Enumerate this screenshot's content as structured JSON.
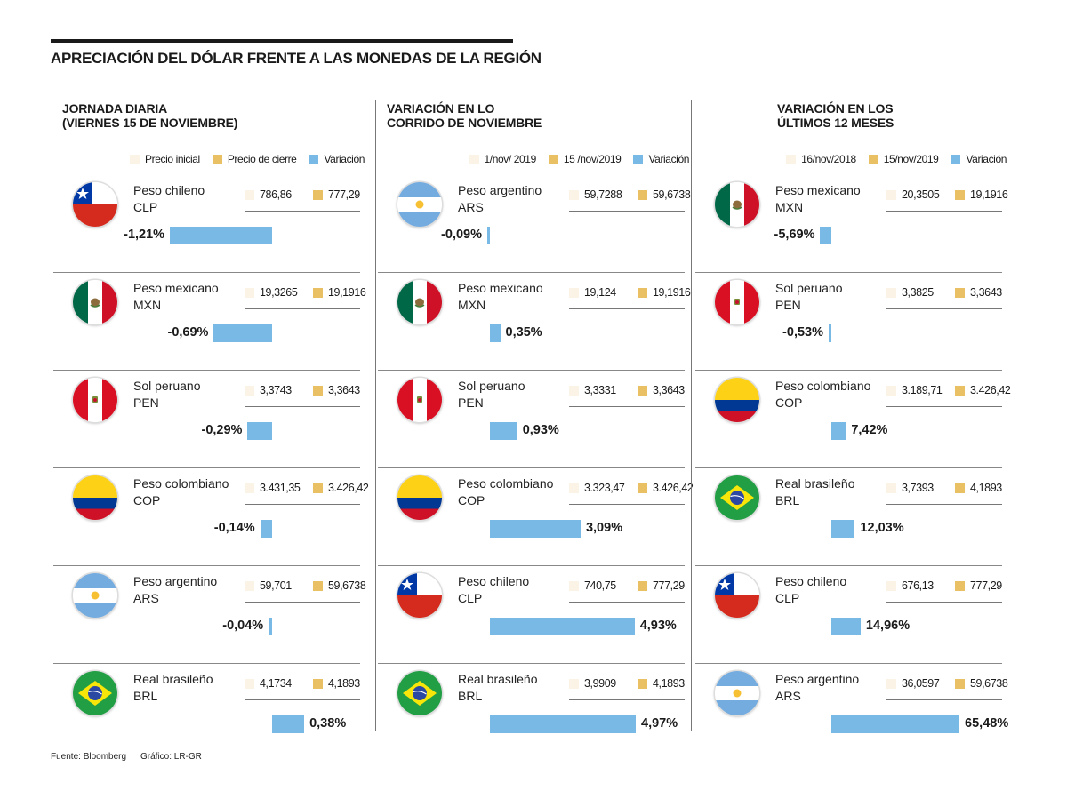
{
  "title": "APRECIACIÓN DEL DÓLAR FRENTE A LAS MONEDAS DE LA REGIÓN",
  "colors": {
    "initial": "#fbf3e6",
    "close": "#e9c064",
    "variation": "#78b9e5"
  },
  "footer": {
    "source": "Fuente: Bloomberg",
    "credit": "Gráfico: LR-GR"
  },
  "chart_data": [
    {
      "type": "bar",
      "title": "JORNADA DIARIA (VIERNES 15 DE NOVIEMBRE)",
      "title_lines": [
        "JORNADA DIARIA",
        "(VIERNES 15 DE NOVIEMBRE)"
      ],
      "legend": [
        "Precio inicial",
        "Precio de cierre",
        "Variación"
      ],
      "rows": [
        {
          "name": "Peso chileno",
          "code": "CLP",
          "flag": "cl",
          "initial": "786,86",
          "close": "777,29",
          "variation_label": "-1,21%",
          "variation": -1.21
        },
        {
          "name": "Peso mexicano",
          "code": "MXN",
          "flag": "mx",
          "initial": "19,3265",
          "close": "19,1916",
          "variation_label": "-0,69%",
          "variation": -0.69
        },
        {
          "name": "Sol peruano",
          "code": "PEN",
          "flag": "pe",
          "initial": "3,3743",
          "close": "3,3643",
          "variation_label": "-0,29%",
          "variation": -0.29
        },
        {
          "name": "Peso colombiano",
          "code": "COP",
          "flag": "co",
          "initial": "3.431,35",
          "close": "3.426,42",
          "variation_label": "-0,14%",
          "variation": -0.14
        },
        {
          "name": "Peso argentino",
          "code": "ARS",
          "flag": "ar",
          "initial": "59,701",
          "close": "59,6738",
          "variation_label": "-0,04%",
          "variation": -0.04
        },
        {
          "name": "Real brasileño",
          "code": "BRL",
          "flag": "br",
          "initial": "4,1734",
          "close": "4,1893",
          "variation_label": "0,38%",
          "variation": 0.38
        }
      ]
    },
    {
      "type": "bar",
      "title": "VARIACIÓN EN LO CORRIDO DE NOVIEMBRE",
      "title_lines": [
        "VARIACIÓN EN LO",
        "CORRIDO DE NOVIEMBRE"
      ],
      "legend": [
        "1/nov/ 2019",
        "15 /nov/2019",
        "Variación"
      ],
      "rows": [
        {
          "name": "Peso argentino",
          "code": "ARS",
          "flag": "ar",
          "initial": "59,7288",
          "close": "59,6738",
          "variation_label": "-0,09%",
          "variation": -0.09
        },
        {
          "name": "Peso mexicano",
          "code": "MXN",
          "flag": "mx",
          "initial": "19,124",
          "close": "19,1916",
          "variation_label": "0,35%",
          "variation": 0.35
        },
        {
          "name": "Sol peruano",
          "code": "PEN",
          "flag": "pe",
          "initial": "3,3331",
          "close": "3,3643",
          "variation_label": "0,93%",
          "variation": 0.93
        },
        {
          "name": "Peso colombiano",
          "code": "COP",
          "flag": "co",
          "initial": "3.323,47",
          "close": "3.426,42",
          "variation_label": "3,09%",
          "variation": 3.09
        },
        {
          "name": "Peso chileno",
          "code": "CLP",
          "flag": "cl",
          "initial": "740,75",
          "close": "777,29",
          "variation_label": "4,93%",
          "variation": 4.93
        },
        {
          "name": "Real brasileño",
          "code": "BRL",
          "flag": "br",
          "initial": "3,9909",
          "close": "4,1893",
          "variation_label": "4,97%",
          "variation": 4.97
        }
      ]
    },
    {
      "type": "bar",
      "title": "VARIACIÓN EN LOS ÚLTIMOS 12 MESES",
      "title_lines": [
        "VARIACIÓN EN LOS",
        "ÚLTIMOS 12 MESES"
      ],
      "legend": [
        "16/nov/2018",
        "15/nov/2019",
        "Variación"
      ],
      "rows": [
        {
          "name": "Peso mexicano",
          "code": "MXN",
          "flag": "mx",
          "initial": "20,3505",
          "close": "19,1916",
          "variation_label": "-5,69%",
          "variation": -5.69
        },
        {
          "name": "Sol peruano",
          "code": "PEN",
          "flag": "pe",
          "initial": "3,3825",
          "close": "3,3643",
          "variation_label": "-0,53%",
          "variation": -0.53
        },
        {
          "name": "Peso colombiano",
          "code": "COP",
          "flag": "co",
          "initial": "3.189,71",
          "close": "3.426,42",
          "variation_label": "7,42%",
          "variation": 7.42
        },
        {
          "name": "Real brasileño",
          "code": "BRL",
          "flag": "br",
          "initial": "3,7393",
          "close": "4,1893",
          "variation_label": "12,03%",
          "variation": 12.03
        },
        {
          "name": "Peso chileno",
          "code": "CLP",
          "flag": "cl",
          "initial": "676,13",
          "close": "777,29",
          "variation_label": "14,96%",
          "variation": 14.96
        },
        {
          "name": "Peso argentino",
          "code": "ARS",
          "flag": "ar",
          "initial": "36,0597",
          "close": "59,6738",
          "variation_label": "65,48%",
          "variation": 65.48
        }
      ]
    }
  ]
}
